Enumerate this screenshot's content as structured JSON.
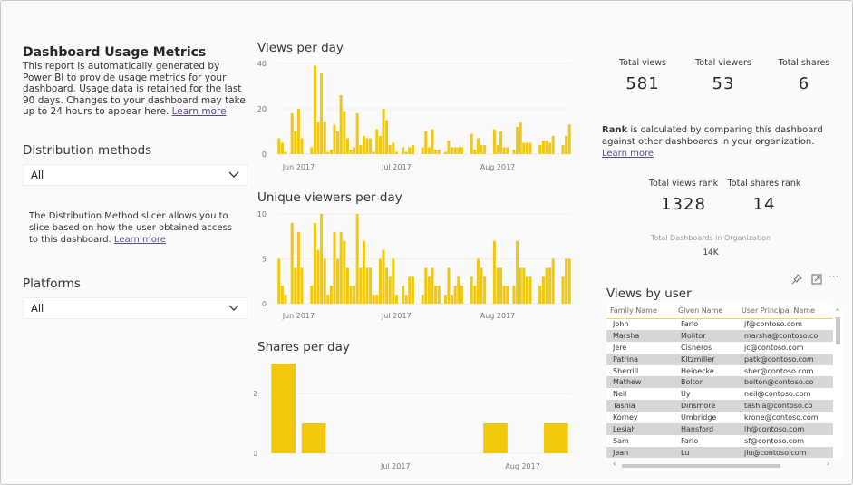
{
  "left": {
    "title": "Dashboard Usage Metrics",
    "description": "This report is automatically generated by Power BI to provide usage metrics for your dashboard. Usage data is retained for the last 90 days. Changes to your dashboard may take up to 24 hours to appear here.",
    "learn_more": "Learn more",
    "distribution": {
      "label": "Distribution methods",
      "value": "All",
      "help": "The Distribution Method slicer allows you to slice based on how the user obtained access to this dashboard.",
      "learn_more": "Learn more"
    },
    "platforms": {
      "label": "Platforms",
      "value": "All"
    }
  },
  "kpis": {
    "total_views": {
      "label": "Total views",
      "value": "581"
    },
    "total_viewers": {
      "label": "Total viewers",
      "value": "53"
    },
    "total_shares": {
      "label": "Total shares",
      "value": "6"
    },
    "rank_bold": "Rank",
    "rank_text": " is calculated by comparing this dashboard against other dashboards in your organization.",
    "rank_learn_more": "Learn more",
    "views_rank": {
      "label": "Total views rank",
      "value": "1328"
    },
    "shares_rank": {
      "label": "Total shares rank",
      "value": "14"
    },
    "org": {
      "label": "Total Dashboards in Organization",
      "value": "14K"
    }
  },
  "views_by_user": {
    "title": "Views by user",
    "columns": [
      "Family Name",
      "Given Name",
      "User Principal Name"
    ],
    "rows": [
      [
        "John",
        "Farlo",
        "jf@contoso.com"
      ],
      [
        "Marsha",
        "Molitor",
        "marsha@contoso.co"
      ],
      [
        "Jere",
        "Cisneros",
        "jc@contoso.com"
      ],
      [
        "Patrina",
        "Kitzmiller",
        "patk@contoso.com"
      ],
      [
        "Sherrill",
        "Heinecke",
        "sher@contoso.com"
      ],
      [
        "Mathew",
        "Bolton",
        "bolton@contoso.co"
      ],
      [
        "Neil",
        "Uy",
        "neil@contoso.com"
      ],
      [
        "Tashia",
        "Dinsmore",
        "tashia@contoso.co"
      ],
      [
        "Korney",
        "Umbridge",
        "krone@contoso.com"
      ],
      [
        "Lesiah",
        "Hansford",
        "lh@contoso.com"
      ],
      [
        "Sam",
        "Farlo",
        "sf@contoso.com"
      ],
      [
        "Jean",
        "Lu",
        "jlu@contoso.com"
      ]
    ]
  },
  "chart_data": [
    {
      "id": "views",
      "type": "bar",
      "title": "Views per day",
      "color": "#F2C80F",
      "ylim": [
        0,
        40
      ],
      "yticks": [
        0,
        20,
        40
      ],
      "grid": true,
      "xticks": [
        {
          "date": "2017-06-01",
          "label": "Jun 2017"
        },
        {
          "date": "2017-07-01",
          "label": "Jul 2017"
        },
        {
          "date": "2017-08-01",
          "label": "Aug 2017"
        }
      ],
      "start": "2017-05-26",
      "values": [
        7,
        5,
        1,
        0,
        18,
        10,
        20,
        7,
        0,
        0,
        3,
        39,
        14,
        36,
        14,
        1,
        2,
        13,
        10,
        26,
        19,
        7,
        2,
        3,
        18,
        4,
        8,
        7,
        7,
        1,
        11,
        8,
        20,
        15,
        4,
        5,
        1,
        0,
        3,
        1,
        3,
        4,
        0,
        0,
        3,
        10,
        3,
        11,
        2,
        2,
        0,
        1,
        6,
        3,
        3,
        3,
        3,
        0,
        0,
        9,
        2,
        7,
        4,
        4,
        0,
        0,
        11,
        4,
        10,
        3,
        3,
        0,
        2,
        12,
        14,
        5,
        5,
        5,
        0,
        0,
        4,
        6,
        6,
        5,
        8,
        0,
        0,
        4,
        8,
        13
      ]
    },
    {
      "id": "viewers",
      "type": "bar",
      "title": "Unique viewers per day",
      "color": "#F2C80F",
      "ylim": [
        0,
        10
      ],
      "yticks": [
        0,
        5,
        10
      ],
      "grid": true,
      "xticks": [
        {
          "date": "2017-06-01",
          "label": "Jun 2017"
        },
        {
          "date": "2017-07-01",
          "label": "Jul 2017"
        },
        {
          "date": "2017-08-01",
          "label": "Aug 2017"
        }
      ],
      "start": "2017-05-26",
      "values": [
        5,
        2,
        1,
        0,
        9,
        4,
        8,
        4,
        0,
        0,
        2,
        9,
        6,
        10,
        5,
        1,
        2,
        8,
        5,
        8,
        7,
        4,
        2,
        2,
        10,
        4,
        7,
        4,
        4,
        1,
        1,
        5,
        6,
        4,
        3,
        5,
        1,
        0,
        2,
        1,
        3,
        3,
        0,
        0,
        1,
        4,
        3,
        4,
        2,
        2,
        0,
        1,
        4,
        1,
        2,
        3,
        2,
        0,
        0,
        3,
        2,
        5,
        4,
        3,
        0,
        0,
        7,
        4,
        4,
        2,
        2,
        0,
        2,
        7,
        4,
        4,
        3,
        3,
        0,
        0,
        2,
        3,
        4,
        4,
        5,
        0,
        0,
        3,
        5,
        5
      ]
    },
    {
      "id": "shares",
      "type": "bar",
      "title": "Shares per day",
      "color": "#F2C80F",
      "ylim": [
        0,
        3
      ],
      "yticks": [
        0,
        2
      ],
      "grid": true,
      "xticks": [
        {
          "slot": 3.7,
          "label": "Jul 2017"
        },
        {
          "slot": 7.9,
          "label": "Aug 2017"
        }
      ],
      "values": [
        3,
        1,
        0,
        0,
        0,
        0,
        0,
        1,
        0,
        1
      ]
    }
  ]
}
